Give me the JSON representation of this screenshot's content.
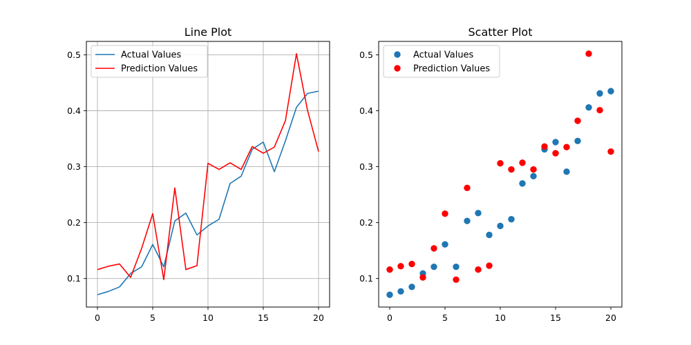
{
  "chart_data": [
    {
      "type": "line",
      "title": "Line Plot",
      "xlabel": "",
      "ylabel": "",
      "xlim": [
        -1,
        21
      ],
      "ylim": [
        0.049,
        0.524
      ],
      "xticks": [
        0,
        5,
        10,
        15,
        20
      ],
      "yticks": [
        0.1,
        0.2,
        0.3,
        0.4,
        0.5
      ],
      "xtick_labels": [
        "0",
        "5",
        "10",
        "15",
        "20"
      ],
      "ytick_labels": [
        "0.1",
        "0.2",
        "0.3",
        "0.4",
        "0.5"
      ],
      "grid": true,
      "legend_position": "top-left",
      "x": [
        0,
        1,
        2,
        3,
        4,
        5,
        6,
        7,
        8,
        9,
        10,
        11,
        12,
        13,
        14,
        15,
        16,
        17,
        18,
        19,
        20
      ],
      "series": [
        {
          "name": "Actual Values",
          "color": "#1f77b4",
          "values": [
            0.071,
            0.077,
            0.085,
            0.109,
            0.121,
            0.161,
            0.121,
            0.203,
            0.217,
            0.178,
            0.194,
            0.206,
            0.27,
            0.283,
            0.331,
            0.344,
            0.291,
            0.346,
            0.406,
            0.431,
            0.435
          ]
        },
        {
          "name": "Prediction Values",
          "color": "#ff0000",
          "values": [
            0.116,
            0.122,
            0.126,
            0.102,
            0.154,
            0.216,
            0.098,
            0.262,
            0.116,
            0.123,
            0.306,
            0.295,
            0.307,
            0.295,
            0.336,
            0.324,
            0.335,
            0.382,
            0.502,
            0.401,
            0.327
          ]
        }
      ]
    },
    {
      "type": "scatter",
      "title": "Scatter Plot",
      "xlabel": "",
      "ylabel": "",
      "xlim": [
        -1,
        21
      ],
      "ylim": [
        0.049,
        0.524
      ],
      "xticks": [
        0,
        5,
        10,
        15,
        20
      ],
      "yticks": [
        0.1,
        0.2,
        0.3,
        0.4,
        0.5
      ],
      "xtick_labels": [
        "0",
        "5",
        "10",
        "15",
        "20"
      ],
      "ytick_labels": [
        "0.1",
        "0.2",
        "0.3",
        "0.4",
        "0.5"
      ],
      "grid": false,
      "legend_position": "top-left",
      "x": [
        0,
        1,
        2,
        3,
        4,
        5,
        6,
        7,
        8,
        9,
        10,
        11,
        12,
        13,
        14,
        15,
        16,
        17,
        18,
        19,
        20
      ],
      "series": [
        {
          "name": "Actual Values",
          "color": "#1f77b4",
          "values": [
            0.071,
            0.077,
            0.085,
            0.109,
            0.121,
            0.161,
            0.121,
            0.203,
            0.217,
            0.178,
            0.194,
            0.206,
            0.27,
            0.283,
            0.331,
            0.344,
            0.291,
            0.346,
            0.406,
            0.431,
            0.435
          ]
        },
        {
          "name": "Prediction Values",
          "color": "#ff0000",
          "values": [
            0.116,
            0.122,
            0.126,
            0.102,
            0.154,
            0.216,
            0.098,
            0.262,
            0.116,
            0.123,
            0.306,
            0.295,
            0.307,
            0.295,
            0.336,
            0.324,
            0.335,
            0.382,
            0.502,
            0.401,
            0.327
          ]
        }
      ]
    }
  ]
}
